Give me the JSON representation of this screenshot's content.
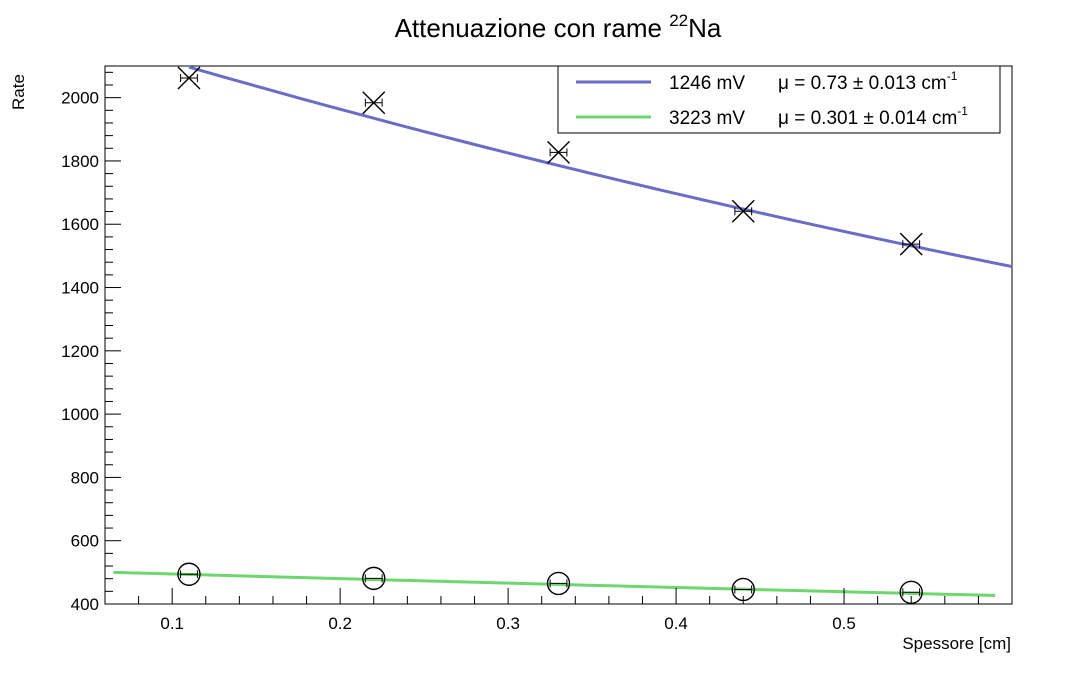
{
  "chart_data": {
    "type": "scatter",
    "title_main": "Attenuazione con rame ",
    "title_sup": "22",
    "title_tail": "Na",
    "xlabel": "Spessore [cm]",
    "ylabel": "Rate",
    "xlim": [
      0.06,
      0.6
    ],
    "ylim": [
      400,
      2100
    ],
    "xticks": [
      "0.1",
      "0.2",
      "0.3",
      "0.4",
      "0.5"
    ],
    "xtick_values": [
      0.1,
      0.2,
      0.3,
      0.4,
      0.5
    ],
    "yticks": [
      "400",
      "600",
      "800",
      "1000",
      "1200",
      "1400",
      "1600",
      "1800",
      "2000"
    ],
    "ytick_values": [
      400,
      600,
      800,
      1000,
      1200,
      1400,
      1600,
      1800,
      2000
    ],
    "grid": false,
    "legend_position": "top-right",
    "series": [
      {
        "name": "1246 mV",
        "fit_text": "μ = 0.73 ± 0.013 cm",
        "fit_sup": "-1",
        "color": "#6b6bc8",
        "marker": "cross",
        "x": [
          0.11,
          0.22,
          0.33,
          0.44,
          0.54
        ],
        "y": [
          2062,
          1984,
          1827,
          1641,
          1537
        ],
        "xerr": 0.005,
        "fit": {
          "A": 2272,
          "mu": 0.73,
          "x_range": [
            0.11,
            0.6
          ]
        }
      },
      {
        "name": "3223 mV",
        "fit_text": "μ = 0.301 ± 0.014 cm",
        "fit_sup": "-1",
        "color": "#6fd66f",
        "marker": "circle",
        "x": [
          0.11,
          0.22,
          0.33,
          0.44,
          0.54
        ],
        "y": [
          494,
          481,
          465,
          446,
          437
        ],
        "xerr": 0.005,
        "fit": {
          "A": 510,
          "mu": 0.301,
          "x_range": [
            0.065,
            0.59
          ]
        }
      }
    ]
  }
}
